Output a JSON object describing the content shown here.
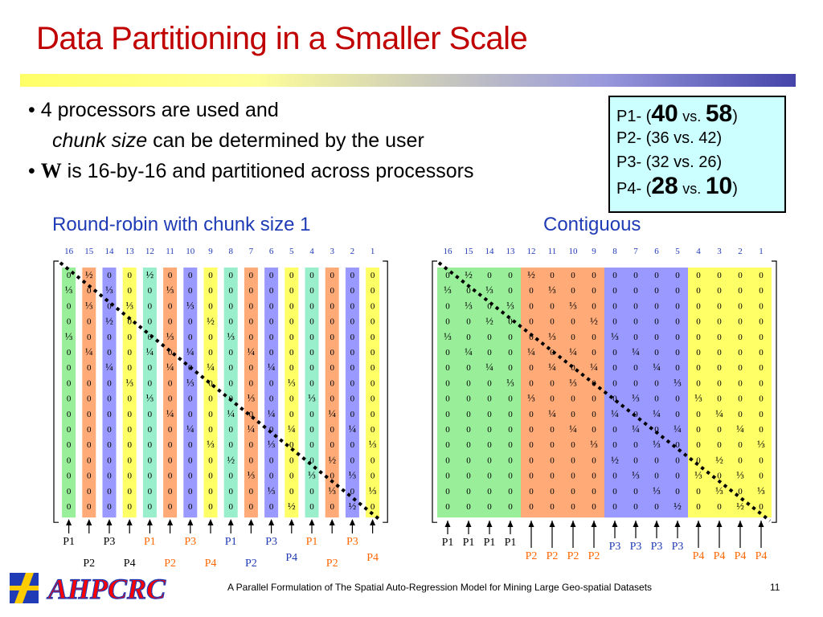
{
  "title": "Data Partitioning in a Smaller Scale",
  "bullets": {
    "b1_bullet": "•",
    "b1_text": "4 processors are used and",
    "b1_italic": "chunk size",
    "b1_rest": "can be determined by the user",
    "b2_bullet": "•",
    "b2_bold": "W",
    "b2_text": "is 16-by-16 and partitioned across processors"
  },
  "ratios": {
    "p1_label": "P1- (",
    "p1_a": "40",
    "p1_vs": "vs.",
    "p1_b": "58",
    "p1_close": ")",
    "p2": "P2- (36 vs. 42)",
    "p3": "P3- (32 vs. 26)",
    "p4_label": "P4- (",
    "p4_a": "28",
    "p4_vs": "vs.",
    "p4_b": "10",
    "p4_close": ")"
  },
  "left_panel": {
    "title": "Round-robin with chunk size 1",
    "column_numbers": [
      "16",
      "15",
      "14",
      "13",
      "12",
      "11",
      "10",
      "9",
      "8",
      "7",
      "6",
      "5",
      "4",
      "3",
      "2",
      "1"
    ],
    "column_colors": [
      "#99ee99",
      "#ffaa77",
      "#9999ff",
      "#ffff66",
      "#99eecc",
      "#ffaa77",
      "#9999ff",
      "#ffff66",
      "#99eecc",
      "#ffaa77",
      "#9999ff",
      "#ffff66",
      "#99eecc",
      "#ffaa77",
      "#9999ff",
      "#ffff66"
    ],
    "processor_row1": [
      {
        "text": "P1",
        "color": "#000000"
      },
      {
        "text": "P3",
        "color": "#000000"
      },
      {
        "text": "P1",
        "color": "#ff6600"
      },
      {
        "text": "P3",
        "color": "#ff6600"
      },
      {
        "text": "P1",
        "color": "#1f3bb5"
      },
      {
        "text": "P3",
        "color": "#1f3bb5"
      },
      {
        "text": "P1",
        "color": "#ff6600"
      },
      {
        "text": "P3",
        "color": "#ff6600"
      }
    ],
    "processor_row2": [
      {
        "text": "P2",
        "color": "#000000"
      },
      {
        "text": "P4",
        "color": "#000000"
      },
      {
        "text": "P2",
        "color": "#ff6600"
      },
      {
        "text": "P4",
        "color": "#ff6600"
      },
      {
        "text": "P2",
        "color": "#1f3bb5"
      },
      {
        "text": "P4",
        "color": "#1f3bb5"
      },
      {
        "text": "P2",
        "color": "#ff6600"
      },
      {
        "text": "P4",
        "color": "#ff6600"
      }
    ]
  },
  "right_panel": {
    "title": "Contiguous",
    "column_numbers": [
      "16",
      "15",
      "14",
      "13",
      "12",
      "11",
      "10",
      "9",
      "8",
      "7",
      "6",
      "5",
      "4",
      "3",
      "2",
      "1"
    ],
    "column_colors": [
      "#99ee99",
      "#99ee99",
      "#99ee99",
      "#99ee99",
      "#ffaa77",
      "#ffaa77",
      "#ffaa77",
      "#ffaa77",
      "#9999ff",
      "#9999ff",
      "#9999ff",
      "#9999ff",
      "#ffff66",
      "#ffff66",
      "#ffff66",
      "#ffff66"
    ],
    "processors": [
      {
        "text": "P1",
        "color": "#000000",
        "row": 1
      },
      {
        "text": "P1",
        "color": "#000000",
        "row": 1
      },
      {
        "text": "P1",
        "color": "#000000",
        "row": 1
      },
      {
        "text": "P1",
        "color": "#000000",
        "row": 1
      },
      {
        "text": "P2",
        "color": "#ff6600",
        "row": 2
      },
      {
        "text": "P2",
        "color": "#ff6600",
        "row": 2
      },
      {
        "text": "P2",
        "color": "#ff6600",
        "row": 2
      },
      {
        "text": "P2",
        "color": "#ff6600",
        "row": 2
      },
      {
        "text": "P3",
        "color": "#1f3bb5",
        "row": 3
      },
      {
        "text": "P3",
        "color": "#1f3bb5",
        "row": 3
      },
      {
        "text": "P3",
        "color": "#1f3bb5",
        "row": 3
      },
      {
        "text": "P3",
        "color": "#1f3bb5",
        "row": 3
      },
      {
        "text": "P4",
        "color": "#ff6600",
        "row": 4
      },
      {
        "text": "P4",
        "color": "#ff6600",
        "row": 4
      },
      {
        "text": "P4",
        "color": "#ff6600",
        "row": 4
      },
      {
        "text": "P4",
        "color": "#ff6600",
        "row": 4
      }
    ]
  },
  "matrix_cells": [
    [
      "0",
      "½",
      "0",
      "0",
      "½",
      "0",
      "0",
      "0",
      "0",
      "0",
      "0",
      "0",
      "0",
      "0",
      "0",
      "0"
    ],
    [
      "⅓",
      "0",
      "⅓",
      "0",
      "0",
      "⅓",
      "0",
      "0",
      "0",
      "0",
      "0",
      "0",
      "0",
      "0",
      "0",
      "0"
    ],
    [
      "0",
      "⅓",
      "0",
      "⅓",
      "0",
      "0",
      "⅓",
      "0",
      "0",
      "0",
      "0",
      "0",
      "0",
      "0",
      "0",
      "0"
    ],
    [
      "0",
      "0",
      "½",
      "0",
      "0",
      "0",
      "0",
      "½",
      "0",
      "0",
      "0",
      "0",
      "0",
      "0",
      "0",
      "0"
    ],
    [
      "⅓",
      "0",
      "0",
      "0",
      "0",
      "⅓",
      "0",
      "0",
      "⅓",
      "0",
      "0",
      "0",
      "0",
      "0",
      "0",
      "0"
    ],
    [
      "0",
      "¼",
      "0",
      "0",
      "¼",
      "0",
      "¼",
      "0",
      "0",
      "¼",
      "0",
      "0",
      "0",
      "0",
      "0",
      "0"
    ],
    [
      "0",
      "0",
      "¼",
      "0",
      "0",
      "¼",
      "0",
      "¼",
      "0",
      "0",
      "¼",
      "0",
      "0",
      "0",
      "0",
      "0"
    ],
    [
      "0",
      "0",
      "0",
      "⅓",
      "0",
      "0",
      "⅓",
      "0",
      "0",
      "0",
      "0",
      "⅓",
      "0",
      "0",
      "0",
      "0"
    ],
    [
      "0",
      "0",
      "0",
      "0",
      "⅓",
      "0",
      "0",
      "0",
      "0",
      "⅓",
      "0",
      "0",
      "⅓",
      "0",
      "0",
      "0"
    ],
    [
      "0",
      "0",
      "0",
      "0",
      "0",
      "¼",
      "0",
      "0",
      "¼",
      "0",
      "¼",
      "0",
      "0",
      "¼",
      "0",
      "0"
    ],
    [
      "0",
      "0",
      "0",
      "0",
      "0",
      "0",
      "¼",
      "0",
      "0",
      "¼",
      "0",
      "¼",
      "0",
      "0",
      "¼",
      "0"
    ],
    [
      "0",
      "0",
      "0",
      "0",
      "0",
      "0",
      "0",
      "⅓",
      "0",
      "0",
      "⅓",
      "0",
      "0",
      "0",
      "0",
      "⅓"
    ],
    [
      "0",
      "0",
      "0",
      "0",
      "0",
      "0",
      "0",
      "0",
      "½",
      "0",
      "0",
      "0",
      "0",
      "½",
      "0",
      "0"
    ],
    [
      "0",
      "0",
      "0",
      "0",
      "0",
      "0",
      "0",
      "0",
      "0",
      "⅓",
      "0",
      "0",
      "⅓",
      "0",
      "⅓",
      "0"
    ],
    [
      "0",
      "0",
      "0",
      "0",
      "0",
      "0",
      "0",
      "0",
      "0",
      "0",
      "⅓",
      "0",
      "0",
      "⅓",
      "0",
      "⅓"
    ],
    [
      "0",
      "0",
      "0",
      "0",
      "0",
      "0",
      "0",
      "0",
      "0",
      "0",
      "0",
      "½",
      "0",
      "0",
      "½",
      "0"
    ]
  ],
  "footer": {
    "logo_text": "AHPCRC",
    "caption": "A Parallel Formulation of The Spatial Auto-Regression Model for Mining Large Geo-spatial Datasets",
    "page_number": "11"
  }
}
